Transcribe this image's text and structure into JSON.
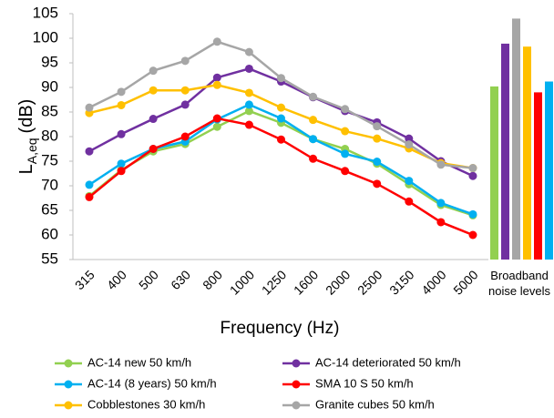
{
  "chart_data": [
    {
      "type": "line",
      "xlabel": "Frequency (Hz)",
      "ylabel": [
        "L",
        "A,eq",
        "(dB)"
      ],
      "categories": [
        "315",
        "400",
        "500",
        "630",
        "800",
        "1000",
        "1250",
        "1600",
        "2000",
        "2500",
        "3150",
        "4000",
        "5000"
      ],
      "ylim": [
        55,
        105
      ],
      "yticks": [
        55,
        60,
        65,
        70,
        75,
        80,
        85,
        90,
        95,
        100,
        105
      ],
      "series": [
        {
          "name": "AC-14 new 50 km/h",
          "color": "#92d050",
          "values": [
            67.9,
            73.2,
            77,
            78.5,
            82,
            85.2,
            82.8,
            79.5,
            77.5,
            74.5,
            70.3,
            66.1,
            64
          ]
        },
        {
          "name": "AC-14 deteriorated 50 km/h",
          "color": "#7030a0",
          "values": [
            77,
            80.5,
            83.6,
            86.5,
            92,
            93.8,
            91.2,
            88,
            85.2,
            82.9,
            79.6,
            75,
            72
          ]
        },
        {
          "name": "AC-14 (8 years) 50 km/h",
          "color": "#00b0f0",
          "values": [
            70.2,
            74.5,
            77.5,
            79,
            83.5,
            86.5,
            83.7,
            79.5,
            76.5,
            74.9,
            71,
            66.5,
            64.2
          ]
        },
        {
          "name": "SMA 10 S 50 km/h",
          "color": "#ff0000",
          "values": [
            67.7,
            73,
            77.5,
            80,
            83.7,
            82.4,
            79.4,
            75.5,
            73,
            70.4,
            66.8,
            62.6,
            60
          ]
        },
        {
          "name": "Cobblestones 30 km/h",
          "color": "#ffc000",
          "values": [
            84.8,
            86.4,
            89.4,
            89.4,
            90.5,
            88.9,
            85.9,
            83.4,
            81.1,
            79.6,
            77.6,
            74.6,
            73.6
          ]
        },
        {
          "name": "Granite cubes 50 km/h",
          "color": "#a6a6a6",
          "values": [
            85.9,
            89.1,
            93.4,
            95.4,
            99.3,
            97.2,
            91.9,
            88.1,
            85.6,
            82.1,
            78.4,
            74.3,
            73.6
          ]
        }
      ]
    },
    {
      "type": "bar",
      "label": "Broadband noise levels",
      "values": [
        90.2,
        98.9,
        104,
        98.3,
        89,
        91.2
      ],
      "colors": [
        "#92d050",
        "#7030a0",
        "#a6a6a6",
        "#ffc000",
        "#ff0000",
        "#00b0f0"
      ]
    }
  ]
}
